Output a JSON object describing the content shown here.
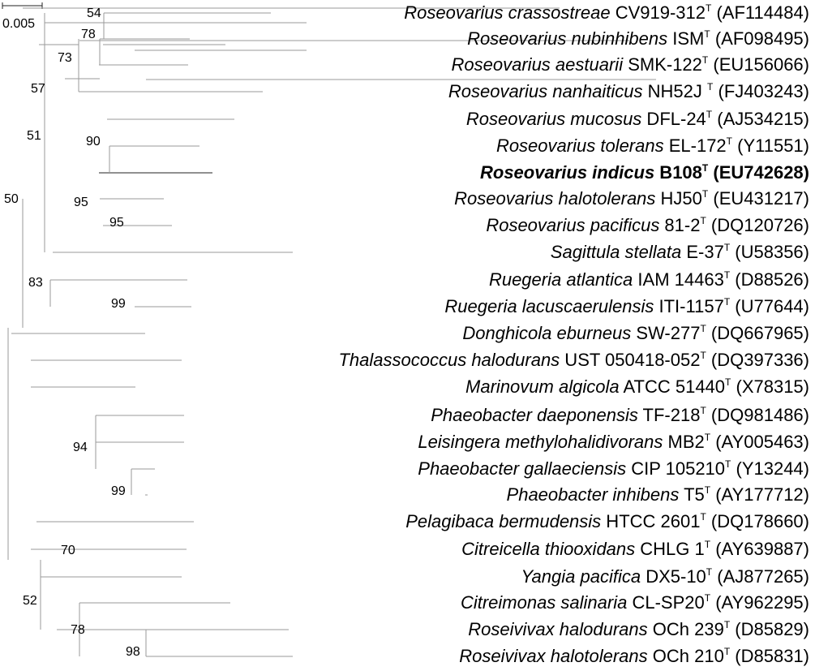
{
  "scale_bar": {
    "label": "0.005"
  },
  "taxa": [
    {
      "genus_species": "Roseovarius crassostreae",
      "strain": "CV919-312",
      "type_mark": "T",
      "accession": "(AF114484)"
    },
    {
      "genus_species": "Roseovarius nubinhibens",
      "strain": "ISM",
      "type_mark": "T",
      "accession": "(AF098495)"
    },
    {
      "genus_species": "Roseovarius aestuarii",
      "strain": "SMK-122",
      "type_mark": "T",
      "accession": "(EU156066)"
    },
    {
      "genus_species": "Roseovarius nanhaiticus",
      "strain": "NH52J ",
      "type_mark": "T",
      "accession": "(FJ403243)"
    },
    {
      "genus_species": "Roseovarius mucosus",
      "strain": "DFL-24",
      "type_mark": "T",
      "accession": "(AJ534215)"
    },
    {
      "genus_species": "Roseovarius tolerans",
      "strain": "EL-172",
      "type_mark": "T",
      "accession": "(Y11551)"
    },
    {
      "genus_species": "Roseovarius indicus",
      "strain": "B108",
      "type_mark": "T",
      "accession": "(EU742628)",
      "bold": true
    },
    {
      "genus_species": "Roseovarius halotolerans",
      "strain": "HJ50",
      "type_mark": "T",
      "accession": "(EU431217)"
    },
    {
      "genus_species": "Roseovarius pacificus",
      "strain": "81-2",
      "type_mark": "T",
      "accession": "(DQ120726)"
    },
    {
      "genus_species": "Sagittula stellata",
      "strain": "E-37",
      "type_mark": "T",
      "accession": "(U58356)"
    },
    {
      "genus_species": "Ruegeria atlantica",
      "strain": "IAM 14463",
      "type_mark": "T",
      "accession": "(D88526)"
    },
    {
      "genus_species": "Ruegeria lacuscaerulensis",
      "strain": "ITI-1157",
      "type_mark": "T",
      "accession": "(U77644)"
    },
    {
      "genus_species": "Donghicola eburneus",
      "strain": "SW-277",
      "type_mark": "T",
      "accession": "(DQ667965)"
    },
    {
      "genus_species": "Thalassococcus halodurans",
      "strain": "UST 050418-052",
      "type_mark": "T",
      "accession": "(DQ397336)"
    },
    {
      "genus_species": "Marinovum algicola",
      "strain": "ATCC 51440",
      "type_mark": "T",
      "accession": "(X78315)"
    },
    {
      "genus_species": "Phaeobacter daeponensis",
      "strain": "TF-218",
      "type_mark": "T",
      "accession": "(DQ981486)"
    },
    {
      "genus_species": "Leisingera methylohalidivorans",
      "strain": "MB2",
      "type_mark": "T",
      "accession": "(AY005463)"
    },
    {
      "genus_species": "Phaeobacter gallaeciensis",
      "strain": "CIP 105210",
      "type_mark": "T",
      "accession": "(Y13244)"
    },
    {
      "genus_species": "Phaeobacter inhibens",
      "strain": "T5",
      "type_mark": "T",
      "accession": "(AY177712)"
    },
    {
      "genus_species": "Pelagibaca bermudensis",
      "strain": "HTCC 2601",
      "type_mark": "T",
      "accession": "(DQ178660)"
    },
    {
      "genus_species": "Citreicella thiooxidans",
      "strain": "CHLG 1",
      "type_mark": "T",
      "accession": "(AY639887)"
    },
    {
      "genus_species": "Yangia pacifica",
      "strain": "DX5-10",
      "type_mark": "T",
      "accession": "(AJ877265)"
    },
    {
      "genus_species": "Citreimonas salinaria",
      "strain": "CL-SP20",
      "type_mark": "T",
      "accession": "(AY962295)"
    },
    {
      "genus_species": "Roseivivax halodurans",
      "strain": "OCh 239",
      "type_mark": "T",
      "accession": "(D85829)"
    },
    {
      "genus_species": "Roseivivax halotolerans",
      "strain": "OCh 210",
      "type_mark": "T",
      "accession": "(D85831)"
    }
  ],
  "bootstrap_values": [
    "54",
    "78",
    "73",
    "57",
    "51",
    "90",
    "50",
    "95",
    "95",
    "83",
    "99",
    "94",
    "99",
    "70",
    "52",
    "78",
    "98"
  ]
}
